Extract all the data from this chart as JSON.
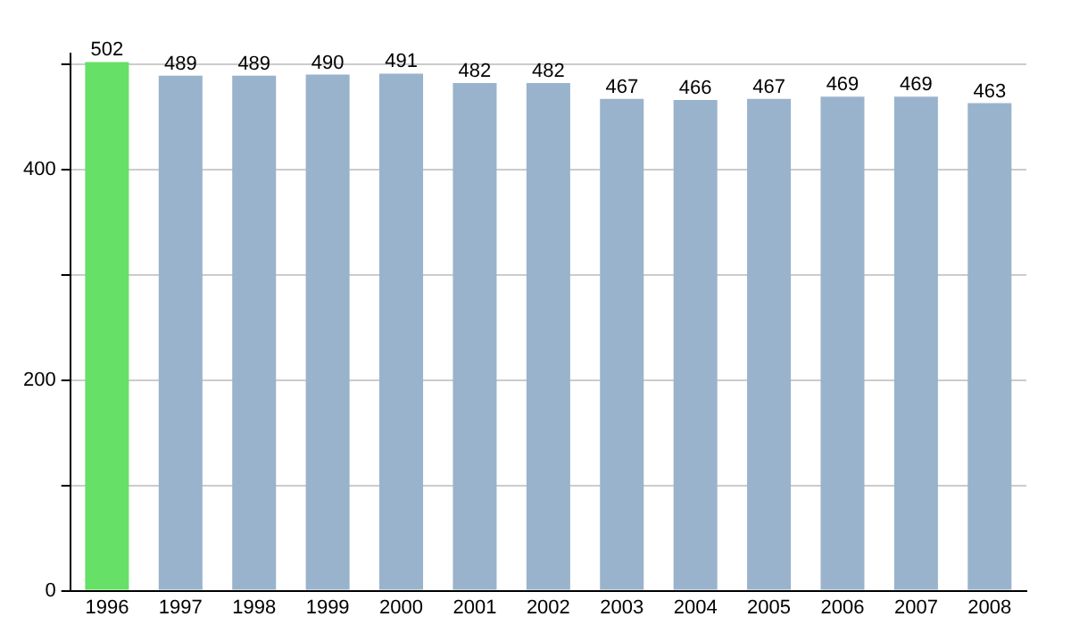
{
  "chart_data": {
    "type": "bar",
    "categories": [
      "1996",
      "1997",
      "1998",
      "1999",
      "2000",
      "2001",
      "2002",
      "2003",
      "2004",
      "2005",
      "2006",
      "2007",
      "2008"
    ],
    "values": [
      502,
      489,
      489,
      490,
      491,
      482,
      482,
      467,
      466,
      467,
      469,
      469,
      463
    ],
    "colors": [
      "#66e066",
      "#9ab3cc",
      "#9ab3cc",
      "#9ab3cc",
      "#9ab3cc",
      "#9ab3cc",
      "#9ab3cc",
      "#9ab3cc",
      "#9ab3cc",
      "#9ab3cc",
      "#9ab3cc",
      "#9ab3cc",
      "#9ab3cc"
    ],
    "ylim": [
      0,
      510
    ],
    "yticks": [
      0,
      {
        "value": 100,
        "label": null
      },
      200,
      {
        "value": 300,
        "label": null
      },
      400,
      {
        "value": 500,
        "label": null
      }
    ],
    "grid": "y",
    "data_labels": true,
    "legend": false
  }
}
